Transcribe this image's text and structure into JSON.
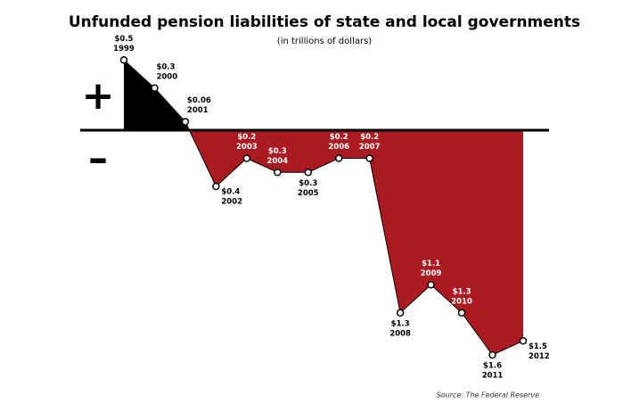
{
  "chart_data": {
    "type": "area",
    "title": "Unfunded pension liabilities of state and local governments",
    "subtitle": "(in trillions of dollars)",
    "source": "Source: The Federal Reserve",
    "positive_label": "+",
    "negative_label": "–",
    "categories": [
      "1999",
      "2000",
      "2001",
      "2002",
      "2003",
      "2004",
      "2005",
      "2006",
      "2007",
      "2008",
      "2009",
      "2010",
      "2011",
      "2012"
    ],
    "values": [
      0.5,
      0.3,
      0.06,
      -0.4,
      -0.2,
      -0.3,
      -0.3,
      -0.2,
      -0.2,
      -1.3,
      -1.1,
      -1.3,
      -1.6,
      -1.5
    ],
    "value_labels": [
      "$0.5",
      "$0.3",
      "$0.06",
      "$0.4",
      "$0.2",
      "$0.3",
      "$0.3",
      "$0.2",
      "$0.2",
      "$1.3",
      "$1.1",
      "$1.3",
      "$1.6",
      "$1.5"
    ],
    "positive_color": "#000000",
    "negative_color": "#ab1a20"
  }
}
